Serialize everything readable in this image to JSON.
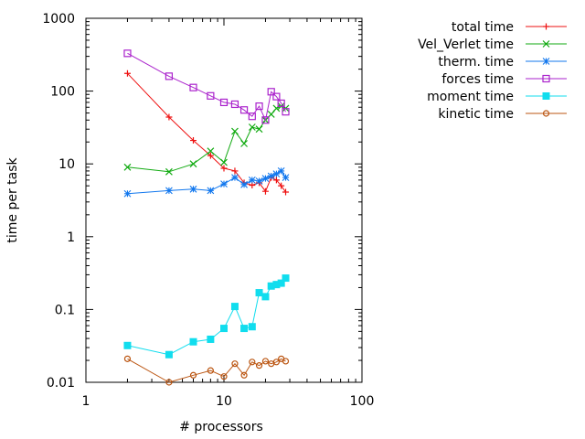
{
  "chart_data": {
    "type": "line",
    "xlabel": "# processors",
    "ylabel": "time per task",
    "xscale": "log",
    "yscale": "log",
    "xlim": [
      1,
      100
    ],
    "ylim": [
      0.01,
      1000
    ],
    "x_ticks": [
      "1",
      "10",
      "100"
    ],
    "y_ticks": [
      "0.01",
      "0.1",
      "1",
      "10",
      "100",
      "1000"
    ],
    "grid": false,
    "legend_position": "outside-right",
    "series": [
      {
        "name": "total time",
        "color": "#ee1111",
        "marker": "plus",
        "x": [
          2,
          4,
          6,
          8,
          10,
          12,
          14,
          16,
          18,
          20,
          22,
          24,
          26,
          28
        ],
        "y": [
          175,
          44,
          21,
          13,
          8.7,
          8,
          5.5,
          5.1,
          5.5,
          4.2,
          6.5,
          6,
          5,
          4.1
        ]
      },
      {
        "name": "Vel_Verlet time",
        "color": "#11aa11",
        "marker": "x",
        "x": [
          2,
          4,
          6,
          8,
          10,
          12,
          14,
          16,
          18,
          20,
          22,
          24,
          26,
          28
        ],
        "y": [
          9,
          7.8,
          10,
          15,
          10.5,
          28,
          19,
          32,
          30,
          40,
          48,
          58,
          62,
          58
        ]
      },
      {
        "name": "therm. time",
        "color": "#1177ee",
        "marker": "star",
        "x": [
          2,
          4,
          6,
          8,
          10,
          12,
          14,
          16,
          18,
          20,
          22,
          24,
          26,
          28
        ],
        "y": [
          3.9,
          4.3,
          4.5,
          4.3,
          5.3,
          6.5,
          5.2,
          6,
          5.8,
          6.3,
          6.8,
          7.3,
          8,
          6.5
        ]
      },
      {
        "name": "forces time",
        "color": "#aa22cc",
        "marker": "open-square",
        "x": [
          2,
          4,
          6,
          8,
          10,
          12,
          14,
          16,
          18,
          20,
          22,
          24,
          26,
          28
        ],
        "y": [
          330,
          160,
          112,
          86,
          70,
          66,
          55,
          45,
          62,
          40,
          98,
          84,
          68,
          52
        ]
      },
      {
        "name": "moment time",
        "color": "#11ddee",
        "marker": "filled-square",
        "x": [
          2,
          4,
          6,
          8,
          10,
          12,
          14,
          16,
          18,
          20,
          22,
          24,
          26,
          28
        ],
        "y": [
          0.032,
          0.024,
          0.036,
          0.039,
          0.055,
          0.11,
          0.055,
          0.058,
          0.17,
          0.15,
          0.21,
          0.22,
          0.23,
          0.27
        ]
      },
      {
        "name": "kinetic time",
        "color": "#bb5511",
        "marker": "open-circle",
        "x": [
          2,
          4,
          6,
          8,
          10,
          12,
          14,
          16,
          18,
          20,
          22,
          24,
          26,
          28
        ],
        "y": [
          0.021,
          0.01,
          0.0125,
          0.0145,
          0.012,
          0.018,
          0.0125,
          0.019,
          0.017,
          0.0195,
          0.018,
          0.019,
          0.021,
          0.0195
        ]
      }
    ]
  }
}
